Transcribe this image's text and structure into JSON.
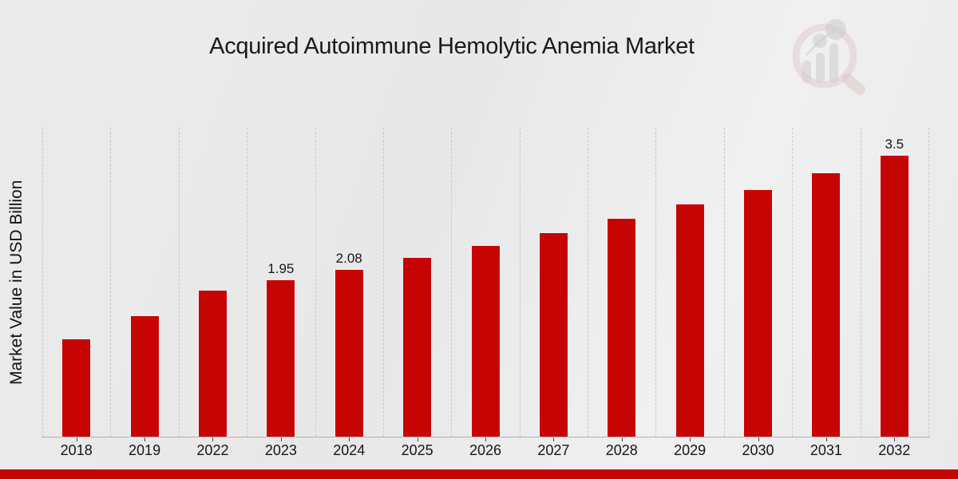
{
  "page": {
    "accent_color": "#c50404",
    "background_color": "#e9e9ea",
    "branding": {
      "watermark_icon": "magnifier-bar-chart-logo"
    }
  },
  "chart_data": {
    "type": "bar",
    "title": "Acquired Autoimmune Hemolytic Anemia Market",
    "xlabel": "",
    "ylabel": "Market Value in USD Billion",
    "categories": [
      "2018",
      "2019",
      "2022",
      "2023",
      "2024",
      "2025",
      "2026",
      "2027",
      "2028",
      "2029",
      "2030",
      "2031",
      "2032"
    ],
    "values": [
      1.21,
      1.5,
      1.82,
      1.95,
      2.08,
      2.23,
      2.38,
      2.54,
      2.72,
      2.89,
      3.07,
      3.28,
      3.5
    ],
    "bar_value_labels": [
      "",
      "",
      "",
      "1.95",
      "2.08",
      "",
      "",
      "",
      "",
      "",
      "",
      "",
      "3.5"
    ],
    "ylim": [
      0,
      3.85
    ],
    "bar_color": "#c70404",
    "grid": "vertical-dashed-category-boundaries",
    "legend": "none"
  }
}
